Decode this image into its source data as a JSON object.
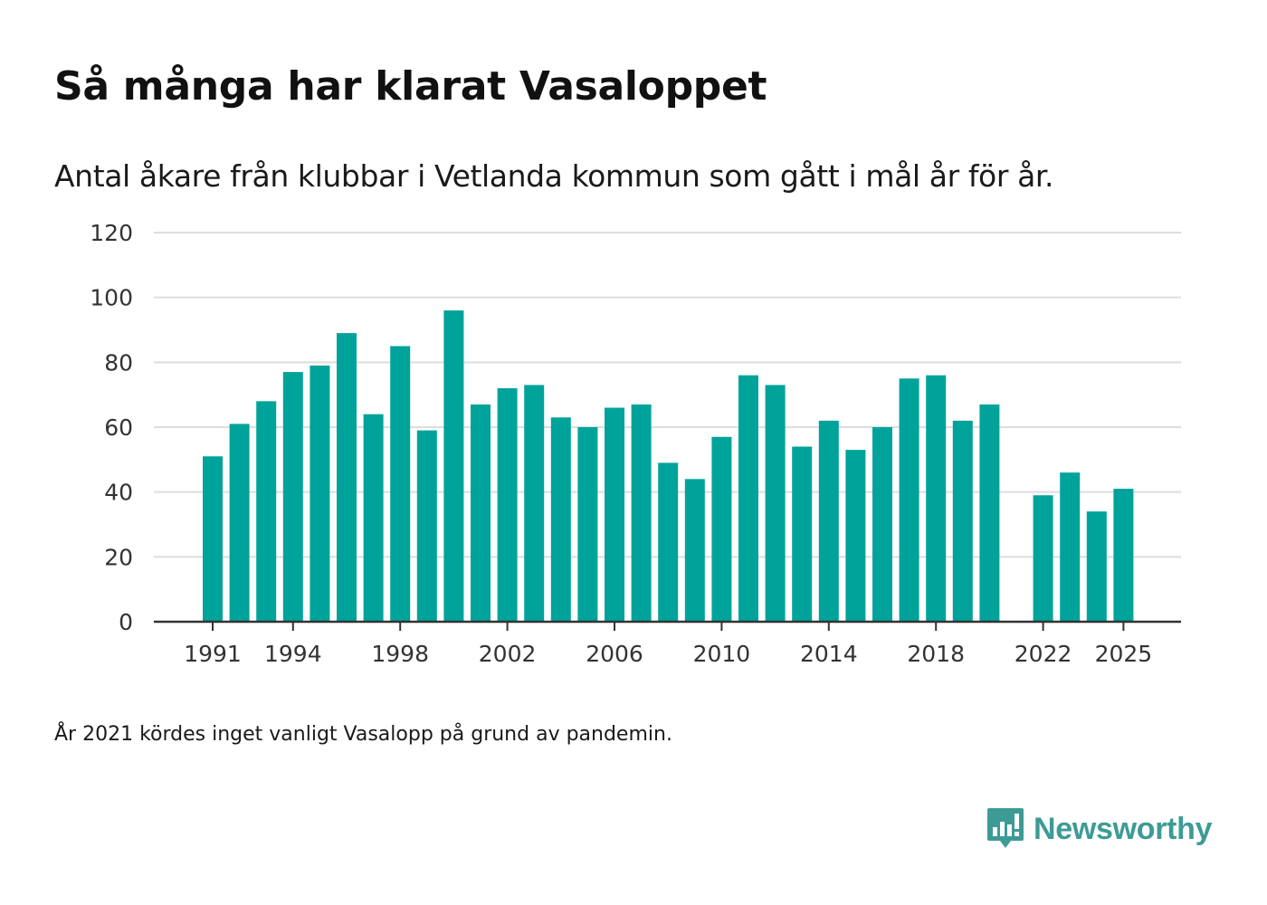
{
  "header": {
    "title": "Så många har klarat Vasaloppet",
    "subtitle": "Antal åkare från klubbar i Vetlanda kommun som gått i mål år för år."
  },
  "footer": {
    "note": "År 2021 kördes inget vanligt Vasalopp på grund av pandemin.",
    "brand": "Newsworthy"
  },
  "colors": {
    "bar": "#00a39a",
    "grid": "#dddddd",
    "axis": "#333333",
    "brand": "#3d9b96"
  },
  "chart_data": {
    "type": "bar",
    "title": "Så många har klarat Vasaloppet",
    "subtitle": "Antal åkare från klubbar i Vetlanda kommun som gått i mål år för år.",
    "xlabel": "",
    "ylabel": "",
    "ylim": [
      0,
      120
    ],
    "yticks": [
      0,
      20,
      40,
      60,
      80,
      100,
      120
    ],
    "xticks": [
      1991,
      1994,
      1998,
      2002,
      2006,
      2010,
      2014,
      2018,
      2022,
      2025
    ],
    "grid": true,
    "categories": [
      1991,
      1992,
      1993,
      1994,
      1995,
      1996,
      1997,
      1998,
      1999,
      2000,
      2001,
      2002,
      2003,
      2004,
      2005,
      2006,
      2007,
      2008,
      2009,
      2010,
      2011,
      2012,
      2013,
      2014,
      2015,
      2016,
      2017,
      2018,
      2019,
      2020,
      2021,
      2022,
      2023,
      2024,
      2025
    ],
    "values": [
      51,
      61,
      68,
      77,
      79,
      89,
      64,
      85,
      59,
      96,
      67,
      72,
      73,
      63,
      60,
      66,
      67,
      49,
      44,
      57,
      76,
      73,
      54,
      62,
      53,
      60,
      75,
      76,
      62,
      67,
      null,
      39,
      46,
      34,
      41
    ]
  }
}
